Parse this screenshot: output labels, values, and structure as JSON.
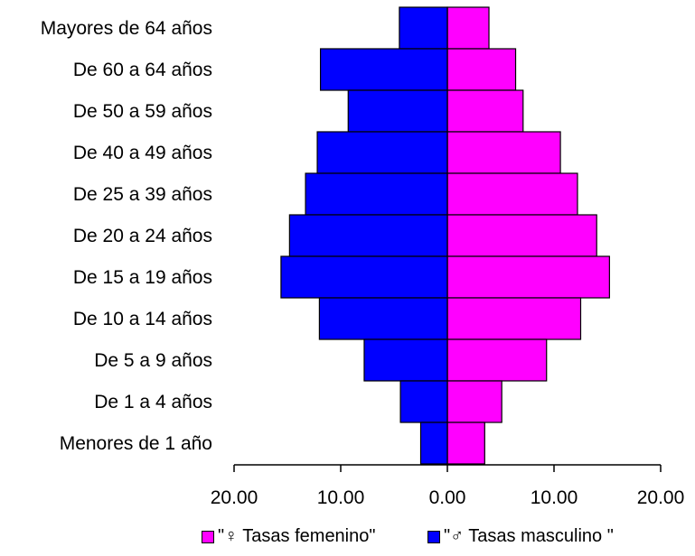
{
  "chart_data": {
    "type": "bar",
    "orientation": "horizontal-diverging",
    "categories": [
      "Mayores de 64 años",
      "De 60 a 64 años",
      "De 50 a 59 años",
      "De 40 a 49 años",
      "De 25 a 39 años",
      "De 20 a 24 años",
      "De 15 a 19 años",
      "De 10 a 14 años",
      "De 5 a 9 años",
      "De 1 a 4 años",
      "Menores de 1 año"
    ],
    "series": [
      {
        "name": "\"♀ Tasas femenino\"",
        "color": "#ff00ff",
        "side": "right",
        "values": [
          3.9,
          6.4,
          7.1,
          10.6,
          12.2,
          14.0,
          15.2,
          12.5,
          9.3,
          5.1,
          3.5
        ]
      },
      {
        "name": "\"♂ Tasas masculino \"",
        "color": "#0000ff",
        "side": "left",
        "values": [
          4.5,
          11.9,
          9.3,
          12.2,
          13.3,
          14.8,
          15.6,
          12.0,
          7.8,
          4.4,
          2.5
        ]
      }
    ],
    "xlim": [
      -20,
      20
    ],
    "xticks": [
      "20.00",
      "10.00",
      "0.00",
      "10.00",
      "20.00"
    ],
    "xtick_values": [
      -20,
      -10,
      0,
      10,
      20
    ],
    "xlabel": "",
    "ylabel": "",
    "title": "",
    "grid": false,
    "legend_position": "bottom"
  },
  "legend": {
    "female_label": "\"♀ Tasas femenino\"",
    "male_label": "\"♂ Tasas masculino \""
  }
}
